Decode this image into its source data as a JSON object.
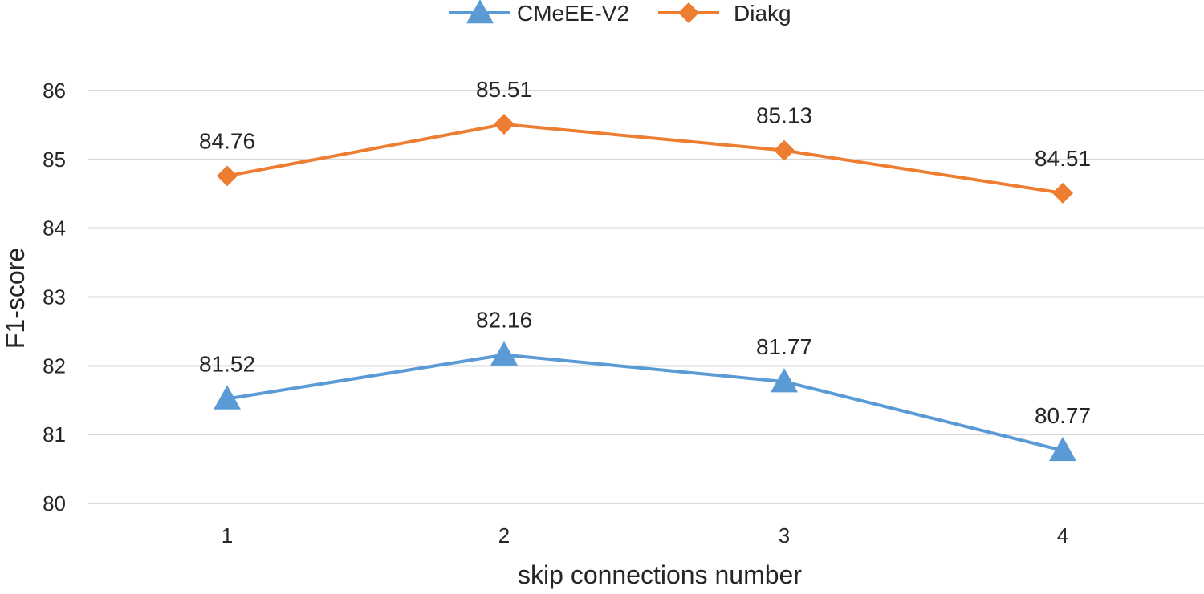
{
  "chart_data": {
    "type": "line",
    "xlabel": "skip connections number",
    "ylabel": "F1-score",
    "categories": [
      "1",
      "2",
      "3",
      "4"
    ],
    "ylim": [
      80,
      86
    ],
    "yticks": [
      80,
      81,
      82,
      83,
      84,
      85,
      86
    ],
    "grid": true,
    "legend_position": "top",
    "series": [
      {
        "name": "CMeEE-V2",
        "values": [
          81.52,
          82.16,
          81.77,
          80.77
        ],
        "labels": [
          "81.52",
          "82.16",
          "81.77",
          "80.77"
        ],
        "color": "#5b9bd5",
        "marker": "triangle"
      },
      {
        "name": "Diakg",
        "values": [
          84.76,
          85.51,
          85.13,
          84.51
        ],
        "labels": [
          "84.76",
          "85.51",
          "85.13",
          "84.51"
        ],
        "color": "#ed7d31",
        "marker": "diamond"
      }
    ]
  }
}
